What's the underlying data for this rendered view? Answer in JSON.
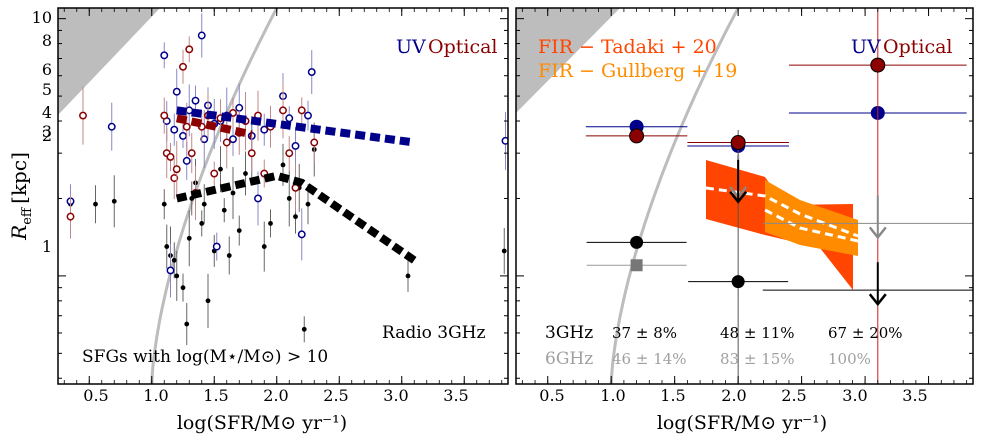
{
  "figure": {
    "xlabel": "log(SFR/M⊙ yr⁻¹)",
    "ylabel": "R_eff [kpc]",
    "ylabel_main": "R",
    "ylabel_sub": "eff",
    "ylabel_unit": "[kpc]"
  },
  "chart_data": [
    {
      "type": "scatter",
      "panel": "left",
      "xlim": [
        0.25,
        3.85
      ],
      "ylim": [
        0.38,
        11
      ],
      "yscale": "log",
      "xticks": [
        "0.5",
        "1.0",
        "1.5",
        "2.0",
        "2.5",
        "3.0",
        "3.5"
      ],
      "yticks": [
        "1",
        "2",
        "3",
        "4",
        "5",
        "6",
        "8",
        "10"
      ],
      "legend_uv": "UV",
      "legend_optical": "Optical",
      "label_radio": "Radio 3GHz",
      "label_sample": "SFGs with  log(M⋆/M⊙) > 10",
      "trend_uv": [
        [
          1.2,
          4.4
        ],
        [
          3.1,
          3.3
        ]
      ],
      "trend_optical": [
        [
          1.2,
          4.1
        ],
        [
          1.8,
          3.55
        ]
      ],
      "trend_radio": [
        [
          1.2,
          2.0
        ],
        [
          2.0,
          2.45
        ],
        [
          2.2,
          2.3
        ],
        [
          3.1,
          1.15
        ]
      ],
      "series": [
        {
          "name": "Radio 3GHz",
          "color": "#000000",
          "points": [
            [
              0.35,
              1.9
            ],
            [
              0.55,
              1.9
            ],
            [
              0.7,
              1.95
            ],
            [
              1.1,
              1.9
            ],
            [
              1.12,
              1.3
            ],
            [
              1.15,
              1.2
            ],
            [
              1.18,
              1.15
            ],
            [
              1.2,
              1.0
            ],
            [
              1.25,
              0.9
            ],
            [
              1.28,
              0.65
            ],
            [
              1.3,
              1.4
            ],
            [
              1.32,
              2.0
            ],
            [
              1.35,
              2.3
            ],
            [
              1.4,
              1.6
            ],
            [
              1.42,
              1.9
            ],
            [
              1.45,
              0.8
            ],
            [
              1.5,
              1.25
            ],
            [
              1.55,
              2.6
            ],
            [
              1.58,
              1.8
            ],
            [
              1.62,
              1.2
            ],
            [
              1.65,
              2.1
            ],
            [
              1.7,
              1.5
            ],
            [
              1.75,
              2.5
            ],
            [
              1.8,
              3.0
            ],
            [
              1.85,
              2.0
            ],
            [
              1.9,
              1.3
            ],
            [
              1.95,
              1.6
            ],
            [
              2.05,
              2.7
            ],
            [
              2.1,
              2.0
            ],
            [
              2.15,
              1.7
            ],
            [
              2.18,
              2.2
            ],
            [
              2.22,
              0.62
            ],
            [
              2.25,
              1.9
            ],
            [
              2.3,
              3.1
            ],
            [
              3.05,
              1.0
            ],
            [
              3.82,
              1.25
            ]
          ]
        },
        {
          "name": "UV",
          "color": "#00008b",
          "points": [
            [
              0.35,
              1.95
            ],
            [
              0.68,
              3.8
            ],
            [
              1.1,
              7.2
            ],
            [
              1.12,
              4.0
            ],
            [
              1.15,
              1.05
            ],
            [
              1.18,
              3.7
            ],
            [
              1.2,
              5.2
            ],
            [
              1.25,
              3.5
            ],
            [
              1.28,
              2.8
            ],
            [
              1.3,
              4.4
            ],
            [
              1.35,
              4.8
            ],
            [
              1.4,
              8.6
            ],
            [
              1.42,
              3.4
            ],
            [
              1.45,
              4.6
            ],
            [
              1.5,
              3.9
            ],
            [
              1.52,
              1.3
            ],
            [
              1.55,
              4.0
            ],
            [
              1.6,
              4.2
            ],
            [
              1.65,
              3.4
            ],
            [
              1.7,
              4.5
            ],
            [
              1.75,
              4.0
            ],
            [
              1.8,
              3.5
            ],
            [
              1.85,
              2.0
            ],
            [
              1.9,
              3.7
            ],
            [
              2.05,
              5.0
            ],
            [
              2.1,
              4.1
            ],
            [
              2.15,
              3.2
            ],
            [
              2.2,
              1.45
            ],
            [
              2.25,
              4.2
            ],
            [
              2.28,
              6.2
            ],
            [
              3.83,
              3.35
            ]
          ]
        },
        {
          "name": "Optical",
          "color": "#8b0000",
          "points": [
            [
              0.35,
              1.7
            ],
            [
              0.45,
              4.2
            ],
            [
              1.1,
              4.2
            ],
            [
              1.12,
              3.0
            ],
            [
              1.15,
              2.9
            ],
            [
              1.18,
              2.4
            ],
            [
              1.2,
              2.6
            ],
            [
              1.25,
              6.5
            ],
            [
              1.28,
              3.8
            ],
            [
              1.3,
              7.6
            ],
            [
              1.32,
              3.0
            ],
            [
              1.35,
              2.1
            ],
            [
              1.4,
              3.8
            ],
            [
              1.45,
              4.2
            ],
            [
              1.5,
              2.5
            ],
            [
              1.55,
              4.1
            ],
            [
              1.6,
              3.3
            ],
            [
              1.65,
              4.3
            ],
            [
              1.7,
              3.6
            ],
            [
              1.75,
              4.0
            ],
            [
              1.8,
              3.0
            ],
            [
              1.85,
              4.2
            ],
            [
              1.9,
              2.5
            ],
            [
              1.95,
              3.8
            ],
            [
              2.05,
              4.4
            ],
            [
              2.1,
              3.0
            ],
            [
              2.15,
              2.2
            ],
            [
              2.2,
              4.4
            ],
            [
              2.3,
              3.3
            ]
          ]
        }
      ]
    },
    {
      "type": "scatter",
      "panel": "right",
      "xlim": [
        0.25,
        3.85
      ],
      "ylim": [
        0.38,
        11
      ],
      "yscale": "log",
      "xticks": [
        "0.5",
        "1.0",
        "1.5",
        "2.0",
        "2.5",
        "3.0",
        "3.5"
      ],
      "legend_uv": "UV",
      "legend_optical": "Optical",
      "legend_fir1": "FIR  − Tadaki + 20",
      "legend_fir2": "FIR  − Gullberg + 19",
      "fir1_color": "#ff4500",
      "fir2_color": "#ff8c00",
      "uv_points": [
        [
          1.2,
          3.8
        ],
        [
          2.0,
          3.2
        ],
        [
          3.1,
          4.3
        ]
      ],
      "optical_points": [
        [
          1.2,
          3.5
        ],
        [
          2.0,
          3.3
        ],
        [
          3.1,
          6.6
        ]
      ],
      "radio3_points": [
        [
          1.2,
          1.35
        ],
        [
          2.0,
          0.95
        ]
      ],
      "radio3_upper_limits": [
        [
          2.0,
          2.2
        ],
        [
          3.1,
          0.88
        ]
      ],
      "radio6_points": [
        [
          1.2,
          1.1
        ]
      ],
      "radio6_upper_limits": [
        [
          2.0,
          2.3
        ],
        [
          3.1,
          1.6
        ]
      ],
      "fractions_3ghz_label": "3GHz",
      "fractions_3ghz": [
        "37 ± 8%",
        "48 ± 11%",
        "67 ± 20%"
      ],
      "fractions_6ghz_label": "6GHz",
      "fractions_6ghz": [
        "46 ± 14%",
        "83 ± 15%",
        "100%"
      ]
    }
  ]
}
